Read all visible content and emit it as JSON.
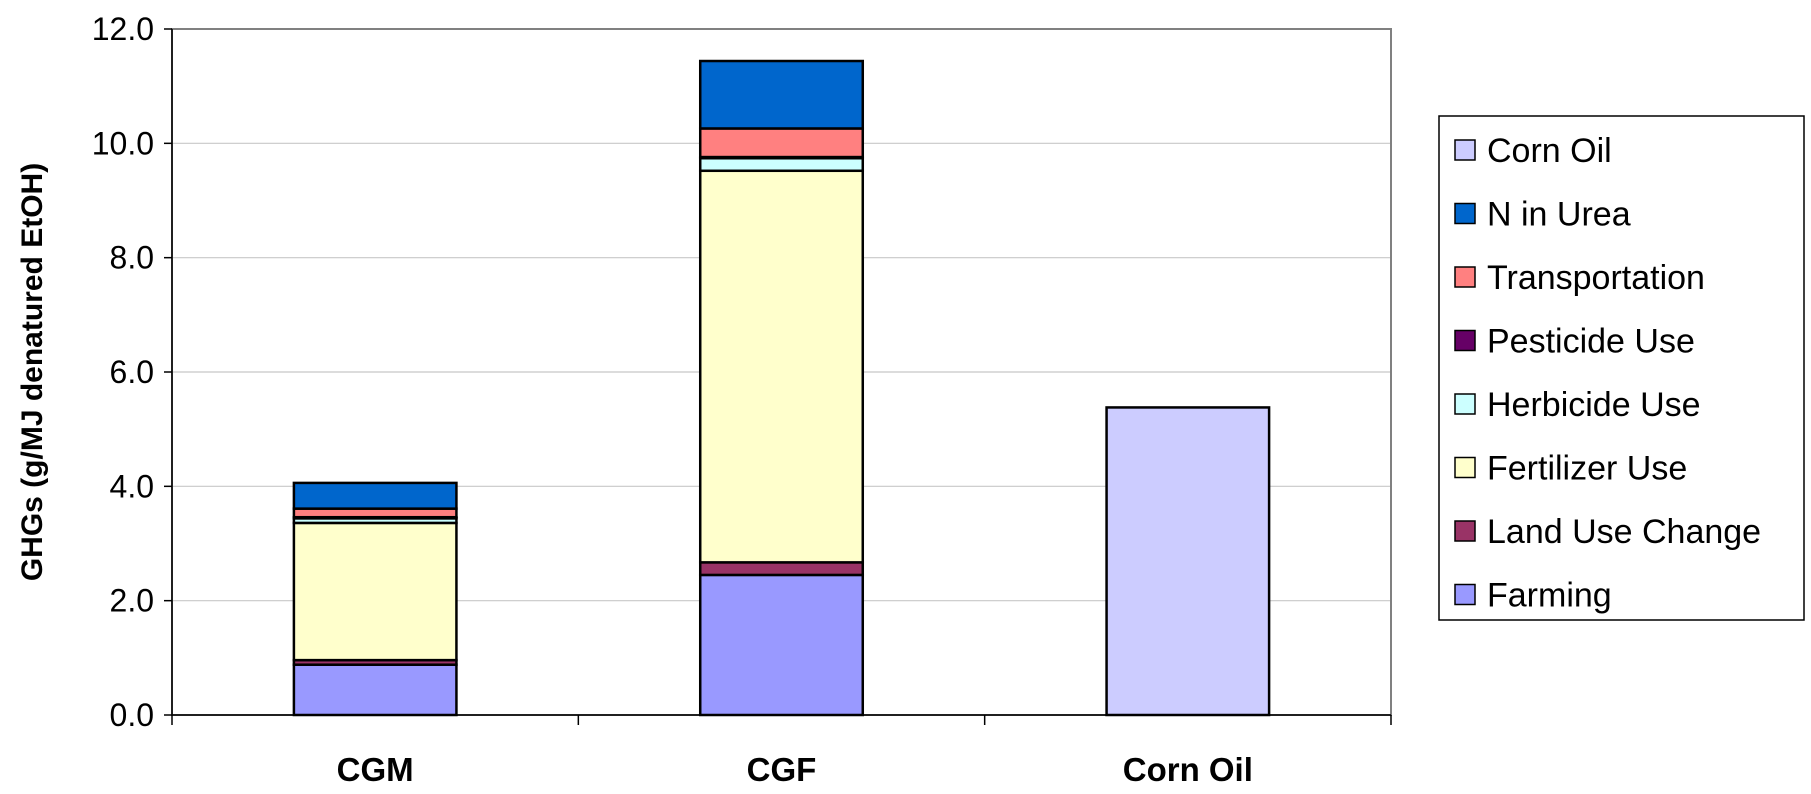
{
  "chart_data": {
    "type": "bar",
    "stacked": true,
    "categories": [
      "CGM",
      "CGF",
      "Corn Oil"
    ],
    "ylabel": "GHGs (g/MJ denatured EtOH)",
    "xlabel": "",
    "ylim": [
      0,
      12
    ],
    "yticks": [
      "0.0",
      "2.0",
      "4.0",
      "6.0",
      "8.0",
      "10.0",
      "12.0"
    ],
    "grid": true,
    "legend_position": "right",
    "series": [
      {
        "name": "Farming",
        "color": "#9999ff",
        "values": [
          0.88,
          2.45,
          0
        ]
      },
      {
        "name": "Land Use Change",
        "color": "#993366",
        "values": [
          0.08,
          0.22,
          0
        ]
      },
      {
        "name": "Fertilizer Use",
        "color": "#ffffcc",
        "values": [
          2.4,
          6.85,
          0
        ]
      },
      {
        "name": "Herbicide Use",
        "color": "#ccffff",
        "values": [
          0.08,
          0.22,
          0
        ]
      },
      {
        "name": "Pesticide Use",
        "color": "#660066",
        "values": [
          0.02,
          0.02,
          0
        ]
      },
      {
        "name": "Transportation",
        "color": "#ff8080",
        "values": [
          0.15,
          0.5,
          0
        ]
      },
      {
        "name": "N in Urea",
        "color": "#0066cc",
        "values": [
          0.45,
          1.18,
          0
        ]
      },
      {
        "name": "Corn Oil",
        "color": "#ccccff",
        "values": [
          0,
          0,
          5.38
        ]
      }
    ]
  }
}
